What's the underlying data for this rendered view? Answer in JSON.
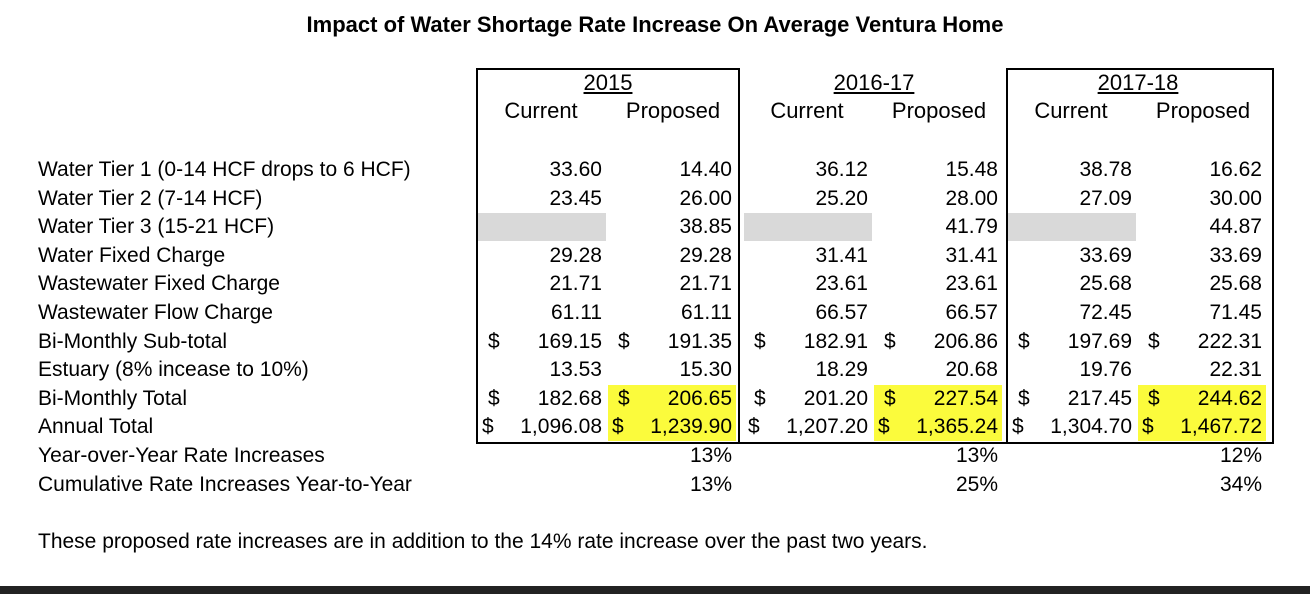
{
  "title": "Impact of Water Shortage Rate Increase On Average Ventura Home",
  "periods": [
    {
      "year": "2015",
      "col1": "Current",
      "col2": "Proposed"
    },
    {
      "year": "2016-17",
      "col1": "Current",
      "col2": "Proposed"
    },
    {
      "year": "2017-18",
      "col1": "Current",
      "col2": "Proposed"
    }
  ],
  "rows": [
    {
      "label": "Water Tier 1 (0-14 HCF drops to 6 HCF)",
      "values": [
        "33.60",
        "14.40",
        "36.12",
        "15.48",
        "38.78",
        "16.62"
      ]
    },
    {
      "label": "Water Tier 2 (7-14 HCF)",
      "values": [
        "23.45",
        "26.00",
        "25.20",
        "28.00",
        "27.09",
        "30.00"
      ]
    },
    {
      "label": "Water Tier 3 (15-21 HCF)",
      "values": [
        "",
        "38.85",
        "",
        "41.79",
        "",
        "44.87"
      ]
    },
    {
      "label": "Water Fixed Charge",
      "values": [
        "29.28",
        "29.28",
        "31.41",
        "31.41",
        "33.69",
        "33.69"
      ]
    },
    {
      "label": "Wastewater Fixed Charge",
      "values": [
        "21.71",
        "21.71",
        "23.61",
        "23.61",
        "25.68",
        "25.68"
      ]
    },
    {
      "label": "Wastewater Flow Charge",
      "values": [
        "61.11",
        "61.11",
        "66.57",
        "66.57",
        "72.45",
        "71.45"
      ]
    },
    {
      "label": "Bi-Monthly Sub-total",
      "values": [
        "169.15",
        "191.35",
        "182.91",
        "206.86",
        "197.69",
        "222.31"
      ]
    },
    {
      "label": "Estuary (8% incease to 10%)",
      "values": [
        "13.53",
        "15.30",
        "18.29",
        "20.68",
        "19.76",
        "22.31"
      ]
    },
    {
      "label": "Bi-Monthly Total",
      "values": [
        "182.68",
        "206.65",
        "201.20",
        "227.54",
        "217.45",
        "244.62"
      ]
    },
    {
      "label": "Annual Total",
      "values": [
        "1,096.08",
        "1,239.90",
        "1,207.20",
        "1,365.24",
        "1,304.70",
        "1,467.72"
      ]
    },
    {
      "label": "Year-over-Year Rate Increases",
      "values": [
        "",
        "13%",
        "",
        "13%",
        "",
        "12%"
      ]
    },
    {
      "label": "Cumulative Rate Increases Year-to-Year",
      "values": [
        "",
        "13%",
        "",
        "25%",
        "",
        "34%"
      ]
    }
  ],
  "currency_symbol": "$",
  "colors": {
    "highlight": "#fbfb3c",
    "empty_cell": "#d9d9d9"
  },
  "footnote": "These proposed rate increases are in addition to the 14% rate increase over the past two years."
}
